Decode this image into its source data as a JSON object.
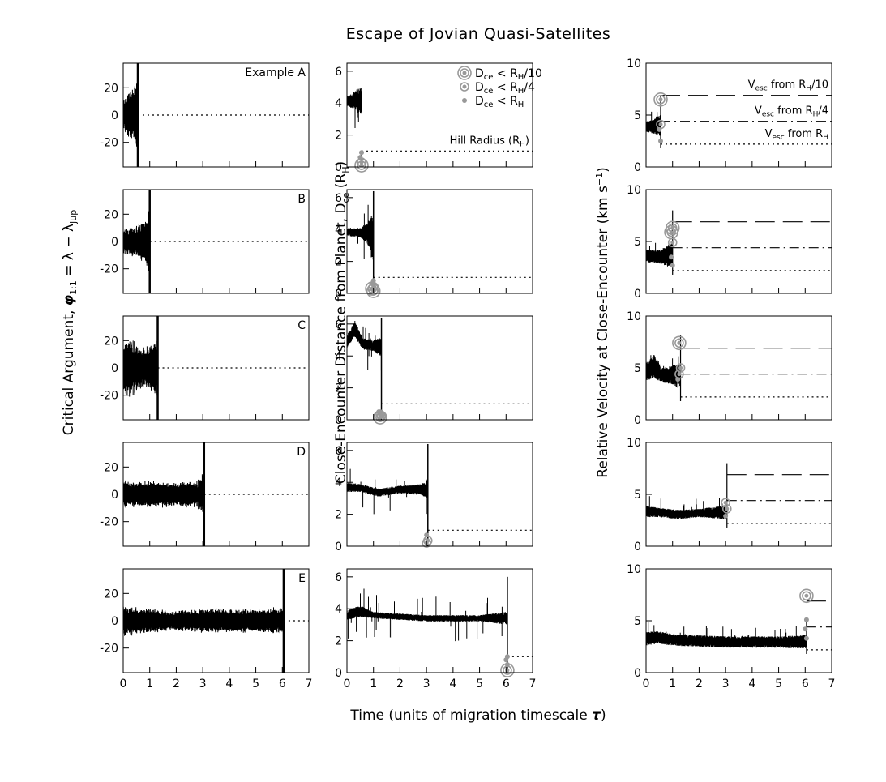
{
  "chart_data": {
    "type": "line",
    "title": "Escape of Jovian Quasi-Satellites",
    "xlabel": "Time (units of migration timescale τ)",
    "xlim": [
      0,
      7
    ],
    "xticks": [
      "0",
      "1",
      "2",
      "3",
      "4",
      "5",
      "6",
      "7"
    ],
    "columns": [
      {
        "id": "phi",
        "ylabel": "Critical Argument, φ1:1 = λ − λJup",
        "ylabel_parts": {
          "pre": "Critical Argument, ",
          "sym": "φ",
          "sub1": "1:1",
          "mid": " = λ − λ",
          "sub2": "Jup"
        },
        "ylim": [
          -38,
          38
        ],
        "yticks": [
          -20,
          0,
          20
        ],
        "reference_lines": [
          {
            "y": 0,
            "style": "dotted"
          }
        ]
      },
      {
        "id": "dce",
        "ylabel": "Close-Encounter Distance from Planet, Dce (RH)",
        "ylabel_parts": {
          "pre": "Close-Encounter Distance from Planet, D",
          "sub1": "ce",
          "mid": " (R",
          "sub2": "H",
          "post": ")"
        },
        "ylim": [
          0,
          6.5
        ],
        "yticks": [
          0,
          2,
          4,
          6
        ],
        "reference_lines": [
          {
            "y": 1,
            "style": "dotted",
            "label": "Hill Radius (RH)"
          }
        ]
      },
      {
        "id": "vrel",
        "ylabel": "Relative Velocity at Close-Encounter (km s−1)",
        "ylabel_parts": {
          "pre": "Relative Velocity at Close-Encounter (km s",
          "sup": "−1",
          "post": ")"
        },
        "ylim": [
          0,
          10
        ],
        "yticks": [
          0,
          5,
          10
        ],
        "reference_lines": [
          {
            "y": 6.9,
            "style": "long-dash",
            "label": "Vesc from RH/10"
          },
          {
            "y": 4.4,
            "style": "dash-dot",
            "label": "Vesc from RH/4"
          },
          {
            "y": 2.2,
            "style": "dotted",
            "label": "Vesc from RH"
          }
        ]
      }
    ],
    "rows": [
      {
        "label": "Example A",
        "escape_time": 0.55,
        "phi_band": [
          {
            "t": 0.0,
            "amp": 10
          },
          {
            "t": 0.3,
            "amp": 14
          },
          {
            "t": 0.5,
            "amp": 18
          }
        ],
        "dce_band": [
          {
            "t": 0.0,
            "lo": 3.8,
            "hi": 4.4
          },
          {
            "t": 0.3,
            "lo": 3.6,
            "hi": 4.8
          },
          {
            "t": 0.5,
            "lo": 3.2,
            "hi": 5.0
          }
        ],
        "vrel_band": [
          {
            "t": 0.0,
            "lo": 3.4,
            "hi": 4.4
          },
          {
            "t": 0.3,
            "lo": 3.2,
            "hi": 4.6
          },
          {
            "t": 0.5,
            "lo": 3.0,
            "hi": 5.0
          }
        ],
        "dce_spike": 1.0,
        "vrel_spike": 6.8,
        "encounters": [
          {
            "t": 0.55,
            "d": 0.1,
            "v": 6.5,
            "class": "RH/10"
          },
          {
            "t": 0.55,
            "d": 0.3,
            "v": 4.1,
            "class": "RH/4"
          },
          {
            "t": 0.5,
            "d": 0.6,
            "v": 3.6,
            "class": "RH"
          },
          {
            "t": 0.55,
            "d": 0.9,
            "v": 2.5,
            "class": "RH"
          }
        ]
      },
      {
        "label": "B",
        "escape_time": 1.0,
        "phi_band": [
          {
            "t": 0.0,
            "amp": 7
          },
          {
            "t": 0.4,
            "amp": 9
          },
          {
            "t": 0.8,
            "amp": 12
          },
          {
            "t": 0.95,
            "amp": 18
          }
        ],
        "dce_band": [
          {
            "t": 0.0,
            "lo": 3.6,
            "hi": 4.1
          },
          {
            "t": 0.5,
            "lo": 3.5,
            "hi": 4.1
          },
          {
            "t": 0.8,
            "lo": 3.0,
            "hi": 4.5
          },
          {
            "t": 0.95,
            "lo": 2.0,
            "hi": 5.0
          }
        ],
        "vrel_band": [
          {
            "t": 0.0,
            "lo": 3.0,
            "hi": 4.2
          },
          {
            "t": 0.5,
            "lo": 2.9,
            "hi": 4.2
          },
          {
            "t": 0.9,
            "lo": 2.5,
            "hi": 4.8
          }
        ],
        "dce_spike": 6.4,
        "vrel_spike": 8.0,
        "encounters": [
          {
            "t": 1.0,
            "d": 0.15,
            "v": 6.3,
            "class": "RH/10"
          },
          {
            "t": 0.95,
            "d": 0.3,
            "v": 5.9,
            "class": "RH/10"
          },
          {
            "t": 1.0,
            "d": 0.4,
            "v": 4.9,
            "class": "RH/4"
          },
          {
            "t": 0.95,
            "d": 0.6,
            "v": 3.5,
            "class": "RH"
          },
          {
            "t": 1.0,
            "d": 0.8,
            "v": 2.7,
            "class": "RH"
          }
        ]
      },
      {
        "label": "C",
        "escape_time": 1.3,
        "phi_band": [
          {
            "t": 0.0,
            "amp": 14
          },
          {
            "t": 0.3,
            "amp": 19
          },
          {
            "t": 0.6,
            "amp": 13
          },
          {
            "t": 1.0,
            "amp": 13
          },
          {
            "t": 1.25,
            "amp": 16
          }
        ],
        "dce_band": [
          {
            "t": 0.0,
            "lo": 4.5,
            "hi": 5.3
          },
          {
            "t": 0.3,
            "lo": 5.2,
            "hi": 6.2
          },
          {
            "t": 0.6,
            "lo": 4.4,
            "hi": 5.1
          },
          {
            "t": 1.0,
            "lo": 4.3,
            "hi": 5.0
          },
          {
            "t": 1.25,
            "lo": 4.0,
            "hi": 5.2
          }
        ],
        "vrel_band": [
          {
            "t": 0.0,
            "lo": 3.8,
            "hi": 5.5
          },
          {
            "t": 0.3,
            "lo": 4.0,
            "hi": 6.3
          },
          {
            "t": 0.6,
            "lo": 3.6,
            "hi": 5.0
          },
          {
            "t": 1.0,
            "lo": 3.4,
            "hi": 5.2
          },
          {
            "t": 1.25,
            "lo": 3.0,
            "hi": 5.5
          }
        ],
        "dce_spike": 6.4,
        "vrel_spike": 8.2,
        "encounters": [
          {
            "t": 1.25,
            "d": 0.15,
            "v": 7.4,
            "class": "RH/10"
          },
          {
            "t": 1.3,
            "d": 0.2,
            "v": 5.0,
            "class": "RH/4"
          },
          {
            "t": 1.25,
            "d": 0.35,
            "v": 4.4,
            "class": "RH/4"
          },
          {
            "t": 1.2,
            "d": 0.5,
            "v": 3.9,
            "class": "RH"
          }
        ]
      },
      {
        "label": "D",
        "escape_time": 3.05,
        "phi_band": [
          {
            "t": 0.0,
            "amp": 9
          },
          {
            "t": 0.5,
            "amp": 7
          },
          {
            "t": 1.0,
            "amp": 8
          },
          {
            "t": 2.0,
            "amp": 7
          },
          {
            "t": 2.8,
            "amp": 8
          },
          {
            "t": 3.0,
            "amp": 12
          }
        ],
        "dce_band": [
          {
            "t": 0.0,
            "lo": 3.4,
            "hi": 4.0
          },
          {
            "t": 0.5,
            "lo": 3.4,
            "hi": 3.9
          },
          {
            "t": 1.2,
            "lo": 3.1,
            "hi": 3.6
          },
          {
            "t": 2.0,
            "lo": 3.3,
            "hi": 3.8
          },
          {
            "t": 2.8,
            "lo": 3.2,
            "hi": 3.9
          },
          {
            "t": 3.0,
            "lo": 3.0,
            "hi": 4.2
          }
        ],
        "vrel_band": [
          {
            "t": 0.0,
            "lo": 2.8,
            "hi": 3.9
          },
          {
            "t": 0.5,
            "lo": 2.8,
            "hi": 3.7
          },
          {
            "t": 1.2,
            "lo": 2.6,
            "hi": 3.5
          },
          {
            "t": 2.0,
            "lo": 2.8,
            "hi": 3.6
          },
          {
            "t": 2.9,
            "lo": 2.6,
            "hi": 3.9
          }
        ],
        "dce_spike": 6.4,
        "vrel_spike": 8.0,
        "encounters": [
          {
            "t": 3.0,
            "d": 0.2,
            "v": 4.2,
            "class": "RH/4"
          },
          {
            "t": 3.05,
            "d": 0.35,
            "v": 3.6,
            "class": "RH/4"
          },
          {
            "t": 3.0,
            "d": 0.7,
            "v": 2.9,
            "class": "RH"
          }
        ]
      },
      {
        "label": "E",
        "escape_time": 6.05,
        "phi_band": [
          {
            "t": 0.0,
            "amp": 9
          },
          {
            "t": 0.5,
            "amp": 8
          },
          {
            "t": 1.0,
            "amp": 7
          },
          {
            "t": 2.0,
            "amp": 6
          },
          {
            "t": 3.0,
            "amp": 7
          },
          {
            "t": 4.0,
            "amp": 7
          },
          {
            "t": 5.0,
            "amp": 7
          },
          {
            "t": 6.0,
            "amp": 8
          }
        ],
        "dce_band": [
          {
            "t": 0.0,
            "lo": 3.3,
            "hi": 3.9
          },
          {
            "t": 0.5,
            "lo": 3.5,
            "hi": 4.2
          },
          {
            "t": 1.0,
            "lo": 3.4,
            "hi": 3.8
          },
          {
            "t": 2.0,
            "lo": 3.3,
            "hi": 3.7
          },
          {
            "t": 3.0,
            "lo": 3.2,
            "hi": 3.6
          },
          {
            "t": 4.0,
            "lo": 3.2,
            "hi": 3.6
          },
          {
            "t": 5.0,
            "lo": 3.2,
            "hi": 3.6
          },
          {
            "t": 6.0,
            "lo": 3.0,
            "hi": 3.8
          }
        ],
        "vrel_band": [
          {
            "t": 0.0,
            "lo": 2.6,
            "hi": 3.9
          },
          {
            "t": 0.5,
            "lo": 2.8,
            "hi": 4.0
          },
          {
            "t": 1.0,
            "lo": 2.6,
            "hi": 3.7
          },
          {
            "t": 2.0,
            "lo": 2.5,
            "hi": 3.6
          },
          {
            "t": 3.0,
            "lo": 2.4,
            "hi": 3.5
          },
          {
            "t": 4.0,
            "lo": 2.4,
            "hi": 3.5
          },
          {
            "t": 5.0,
            "lo": 2.4,
            "hi": 3.5
          },
          {
            "t": 6.0,
            "lo": 2.3,
            "hi": 3.6
          }
        ],
        "dce_spike": 6.0,
        "vrel_spike": 5.0,
        "encounters": [
          {
            "t": 6.05,
            "d": 0.15,
            "v": 7.4,
            "class": "RH/10"
          },
          {
            "t": 6.05,
            "d": 0.5,
            "v": 5.1,
            "class": "RH"
          },
          {
            "t": 6.0,
            "d": 0.8,
            "v": 4.2,
            "class": "RH"
          },
          {
            "t": 6.05,
            "d": 1.0,
            "v": 3.3,
            "class": "RH"
          }
        ]
      }
    ],
    "legend": {
      "placement": "top-right of middle column, first row",
      "entries": [
        {
          "marker": "double-ring",
          "main": "D",
          "sub": "ce",
          "op": " < R",
          "sub2": "H",
          "post": "/10"
        },
        {
          "marker": "ring",
          "main": "D",
          "sub": "ce",
          "op": " < R",
          "sub2": "H",
          "post": "/4"
        },
        {
          "marker": "dot",
          "main": "D",
          "sub": "ce",
          "op": " < R",
          "sub2": "H",
          "post": ""
        }
      ]
    },
    "annotations": {
      "hill": {
        "main": "Hill Radius (R",
        "sub": "H",
        "post": ")"
      },
      "vesc": [
        {
          "main": "V",
          "sub": "esc",
          "mid": " from R",
          "sub2": "H",
          "post": "/10"
        },
        {
          "main": "V",
          "sub": "esc",
          "mid": " from R",
          "sub2": "H",
          "post": "/4"
        },
        {
          "main": "V",
          "sub": "esc",
          "mid": " from R",
          "sub2": "H",
          "post": ""
        }
      ]
    }
  }
}
